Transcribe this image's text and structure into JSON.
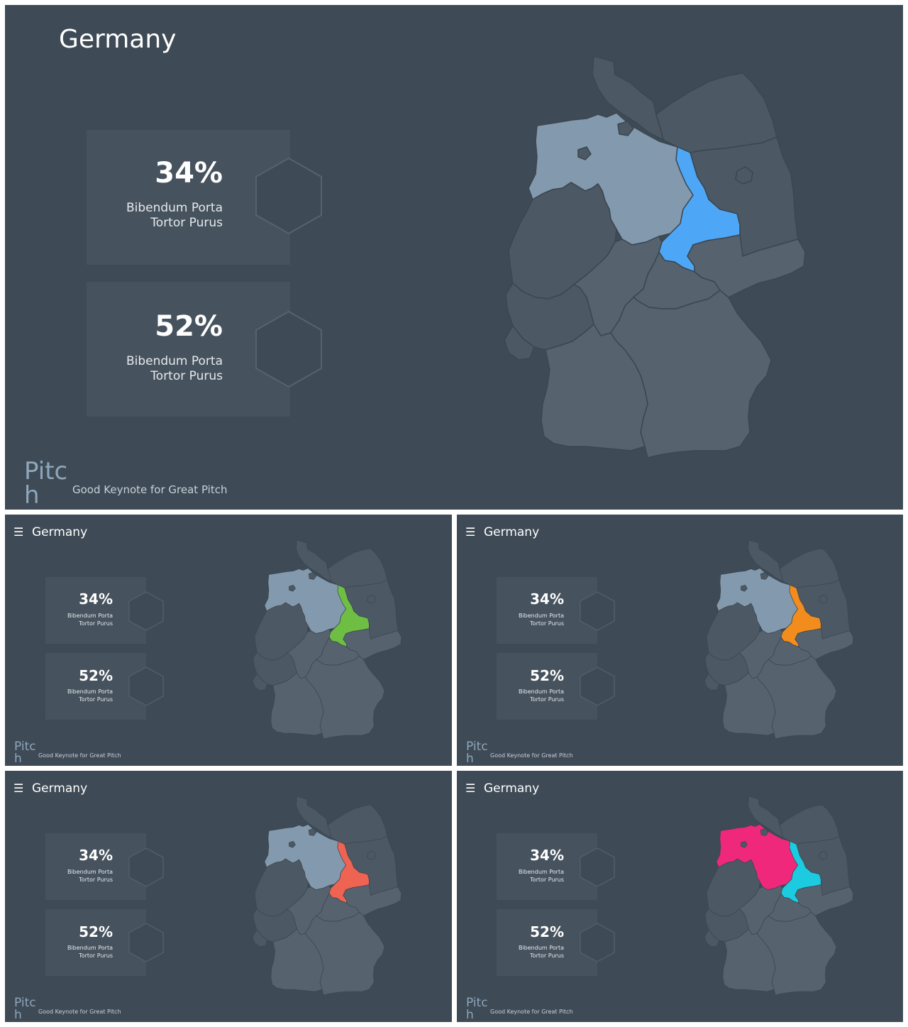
{
  "slides": [
    {
      "title": "Germany",
      "stats": [
        {
          "value": "34%",
          "line1": "Bibendum Porta",
          "line2": "Tortor Purus"
        },
        {
          "value": "52%",
          "line1": "Bibendum Porta",
          "line2": "Tortor Purus"
        }
      ],
      "brand_line1": "Pitc",
      "brand_line2": "h",
      "tagline": "Good Keynote for Great Pitch",
      "highlight_color": "#4ea7f6"
    },
    {
      "title": "Germany",
      "stats": [
        {
          "value": "34%",
          "line1": "Bibendum Porta",
          "line2": "Tortor Purus"
        },
        {
          "value": "52%",
          "line1": "Bibendum Porta",
          "line2": "Tortor Purus"
        }
      ],
      "brand_line1": "Pitc",
      "brand_line2": "h",
      "tagline": "Good Keynote for Great Pitch",
      "highlight_color": "#6ebe44"
    },
    {
      "title": "Germany",
      "stats": [
        {
          "value": "34%",
          "line1": "Bibendum Porta",
          "line2": "Tortor Purus"
        },
        {
          "value": "52%",
          "line1": "Bibendum Porta",
          "line2": "Tortor Purus"
        }
      ],
      "brand_line1": "Pitc",
      "brand_line2": "h",
      "tagline": "Good Keynote for Great Pitch",
      "highlight_color": "#f28c1d"
    },
    {
      "title": "Germany",
      "stats": [
        {
          "value": "34%",
          "line1": "Bibendum Porta",
          "line2": "Tortor Purus"
        },
        {
          "value": "52%",
          "line1": "Bibendum Porta",
          "line2": "Tortor Purus"
        }
      ],
      "brand_line1": "Pitc",
      "brand_line2": "h",
      "tagline": "Good Keynote for Great Pitch",
      "highlight_color": "#ee6352"
    },
    {
      "title": "Germany",
      "stats": [
        {
          "value": "34%",
          "line1": "Bibendum Porta",
          "line2": "Tortor Purus"
        },
        {
          "value": "52%",
          "line1": "Bibendum Porta",
          "line2": "Tortor Purus"
        }
      ],
      "brand_line1": "Pitc",
      "brand_line2": "h",
      "tagline": "Good Keynote for Great Pitch",
      "highlight_color": "#1ccbe0",
      "secondary_highlight_color": "#f0287c"
    }
  ],
  "icons": {
    "menu": "menu-icon",
    "hexagon": "hexagon-icon"
  },
  "colors": {
    "background": "#3e4a55",
    "card": "#46525d",
    "region_dark": "#4c5965",
    "region_mid": "#56636f",
    "lower_saxony": "#8399ad",
    "border": "#3a4650",
    "brand": "#8fa6bb"
  }
}
